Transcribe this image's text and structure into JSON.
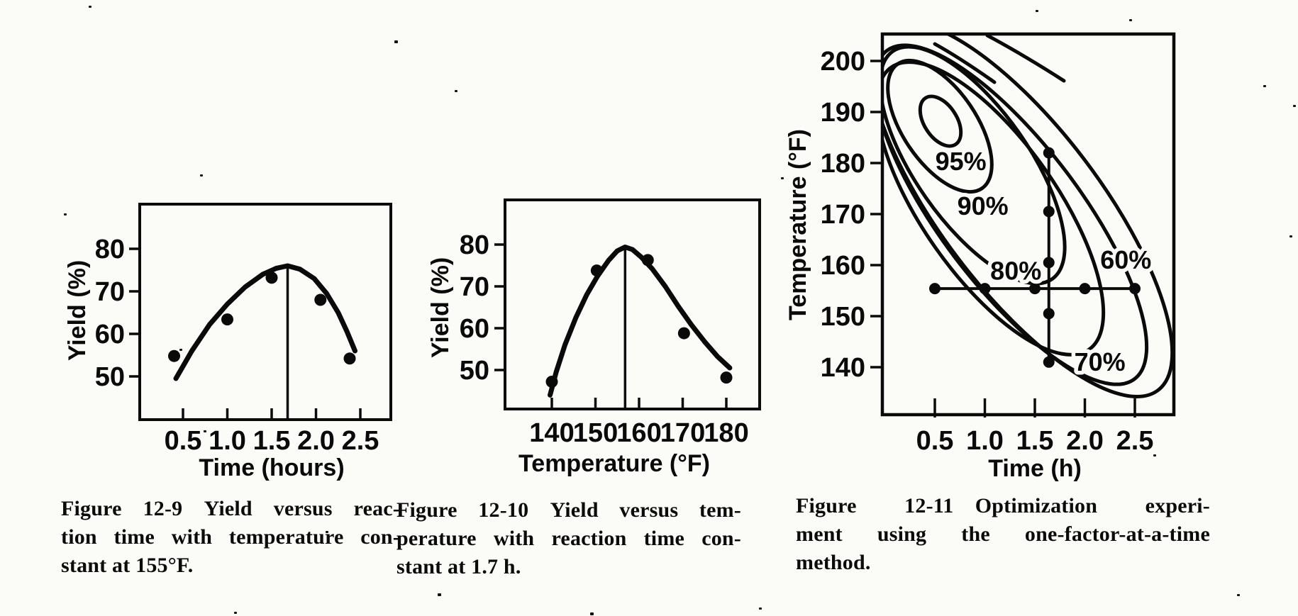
{
  "colors": {
    "paper": "#fbfbf8",
    "ink": "#0a0a0a"
  },
  "chart_data": [
    {
      "id": "fig9",
      "type": "scatter",
      "title": "Yield versus reaction time with temperature constant at 155°F",
      "xlabel": "Time (hours)",
      "ylabel": "Yield (%)",
      "x_ticks": [
        "0.5",
        "1.0",
        "1.5",
        "2.0",
        "2.5"
      ],
      "y_ticks": [
        "80",
        "70",
        "60",
        "50"
      ],
      "xlim": [
        0.0,
        2.85
      ],
      "ylim": [
        40,
        90
      ],
      "grid": false,
      "points": [
        [
          0.4,
          54.8
        ],
        [
          1.0,
          63.4
        ],
        [
          1.5,
          73.2
        ],
        [
          2.05,
          68.0
        ],
        [
          2.38,
          54.2
        ]
      ],
      "curve": [
        [
          0.42,
          49.5
        ],
        [
          0.6,
          56.0
        ],
        [
          0.8,
          62.2
        ],
        [
          1.0,
          67.0
        ],
        [
          1.2,
          71.0
        ],
        [
          1.4,
          74.0
        ],
        [
          1.55,
          75.4
        ],
        [
          1.68,
          76.0
        ],
        [
          1.82,
          75.2
        ],
        [
          1.98,
          73.0
        ],
        [
          2.12,
          69.5
        ],
        [
          2.25,
          65.0
        ],
        [
          2.35,
          60.5
        ],
        [
          2.44,
          56.0
        ]
      ],
      "peak_line": {
        "x": 1.68,
        "top": 76.0
      },
      "caption": {
        "lines": [
          "Figure 12-9 Yield versus reac-",
          "tion time with temperature con-",
          "stant at 155°F."
        ]
      }
    },
    {
      "id": "fig10",
      "type": "scatter",
      "title": "Yield versus temperature with reaction time constant at 1.7 h",
      "xlabel": "Temperature (°F)",
      "ylabel": "Yield (%)",
      "x_ticks": [
        "140",
        "150",
        "160",
        "170",
        "180"
      ],
      "y_ticks": [
        "80",
        "70",
        "60",
        "50"
      ],
      "xlim": [
        129,
        187
      ],
      "ylim": [
        40,
        90
      ],
      "grid": false,
      "points": [
        [
          140.0,
          47.2
        ],
        [
          150.3,
          73.8
        ],
        [
          162.0,
          76.3
        ],
        [
          170.3,
          58.8
        ],
        [
          180.0,
          48.2
        ]
      ],
      "curve": [
        [
          139.6,
          44.0
        ],
        [
          141.0,
          49.5
        ],
        [
          143.0,
          56.0
        ],
        [
          145.5,
          62.5
        ],
        [
          148.0,
          68.0
        ],
        [
          150.5,
          72.5
        ],
        [
          153.0,
          76.2
        ],
        [
          155.0,
          78.5
        ],
        [
          156.8,
          79.4
        ],
        [
          158.5,
          78.8
        ],
        [
          160.5,
          77.0
        ],
        [
          163.0,
          74.2
        ],
        [
          166.0,
          70.0
        ],
        [
          169.0,
          65.2
        ],
        [
          172.0,
          60.8
        ],
        [
          175.0,
          56.8
        ],
        [
          178.0,
          53.2
        ],
        [
          180.8,
          50.5
        ]
      ],
      "peak_line": {
        "x": 156.8,
        "top": 79.4
      },
      "caption": {
        "lines": [
          "Figure 12-10 Yield versus tem-",
          "perature with reaction time con-",
          "stant at 1.7 h."
        ]
      }
    },
    {
      "id": "fig11",
      "type": "contour",
      "title": "Optimization experiment using the one-factor-at-a-time method",
      "xlabel": "Time (h)",
      "ylabel": "Temperature (°F)",
      "x_ticks": [
        "0.5",
        "1.0",
        "1.5",
        "2.0",
        "2.5"
      ],
      "y_ticks": [
        "200",
        "190",
        "180",
        "170",
        "160",
        "150",
        "140"
      ],
      "xlim": [
        0.0,
        2.9
      ],
      "ylim": [
        130,
        205
      ],
      "grid": false,
      "contour_levels_pct": [
        95,
        90,
        80,
        70,
        60
      ],
      "contour_labels": [
        {
          "text": "95%",
          "t": 0.76,
          "T": 180.3
        },
        {
          "text": "90%",
          "t": 0.98,
          "T": 171.5
        },
        {
          "text": "80%",
          "t": 1.31,
          "T": 158.8
        },
        {
          "text": "60%",
          "t": 2.41,
          "T": 161.0
        },
        {
          "text": "70%",
          "t": 2.15,
          "T": 141.0
        }
      ],
      "one_factor_at_a_time": {
        "time_sweep": {
          "temperature": 155.4,
          "times": [
            0.5,
            1.0,
            1.5,
            2.0,
            2.5
          ]
        },
        "temperature_sweep": {
          "time": 1.64,
          "temperatures": [
            182,
            170.5,
            160.5,
            150.5,
            141
          ]
        }
      },
      "caption": {
        "lines": [
          "Figure 12-11 Optimization experi-",
          "ment using the one-factor-at-a-time",
          "method."
        ]
      }
    }
  ]
}
